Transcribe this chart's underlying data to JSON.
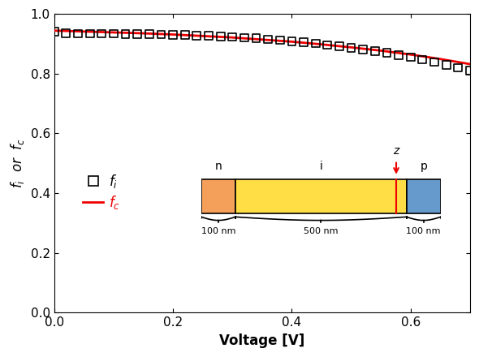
{
  "fi_x": [
    0.0,
    0.02,
    0.04,
    0.06,
    0.08,
    0.1,
    0.12,
    0.14,
    0.16,
    0.18,
    0.2,
    0.22,
    0.24,
    0.26,
    0.28,
    0.3,
    0.32,
    0.34,
    0.36,
    0.38,
    0.4,
    0.42,
    0.44,
    0.46,
    0.48,
    0.5,
    0.52,
    0.54,
    0.56,
    0.58,
    0.6,
    0.62,
    0.64,
    0.66,
    0.68,
    0.7
  ],
  "fi_y": [
    0.94,
    0.935,
    0.934,
    0.934,
    0.934,
    0.934,
    0.933,
    0.932,
    0.932,
    0.931,
    0.93,
    0.929,
    0.928,
    0.927,
    0.925,
    0.923,
    0.92,
    0.918,
    0.915,
    0.912,
    0.908,
    0.905,
    0.901,
    0.896,
    0.891,
    0.886,
    0.88,
    0.875,
    0.869,
    0.862,
    0.855,
    0.847,
    0.839,
    0.83,
    0.82,
    0.81
  ],
  "fc_x": [
    0.0,
    0.05,
    0.1,
    0.15,
    0.2,
    0.25,
    0.3,
    0.35,
    0.4,
    0.45,
    0.5,
    0.55,
    0.6,
    0.65,
    0.7
  ],
  "fc_y": [
    0.944,
    0.941,
    0.938,
    0.935,
    0.931,
    0.926,
    0.921,
    0.914,
    0.907,
    0.898,
    0.888,
    0.877,
    0.864,
    0.849,
    0.832
  ],
  "xlabel": "Voltage [V]",
  "ylabel": "$f_i$  or  $f_c$",
  "xlim": [
    0,
    0.7
  ],
  "ylim": [
    0,
    1.0
  ],
  "xticks": [
    0,
    0.2,
    0.4,
    0.6
  ],
  "yticks": [
    0,
    0.2,
    0.4,
    0.6,
    0.8,
    1
  ],
  "line_color": "#ee0000",
  "scatter_color": "#000000",
  "background_color": "#ffffff",
  "n_color": "#F5A05A",
  "i_color": "#FFDD44",
  "p_color": "#6699CC",
  "red_line_color": "#ee0000"
}
